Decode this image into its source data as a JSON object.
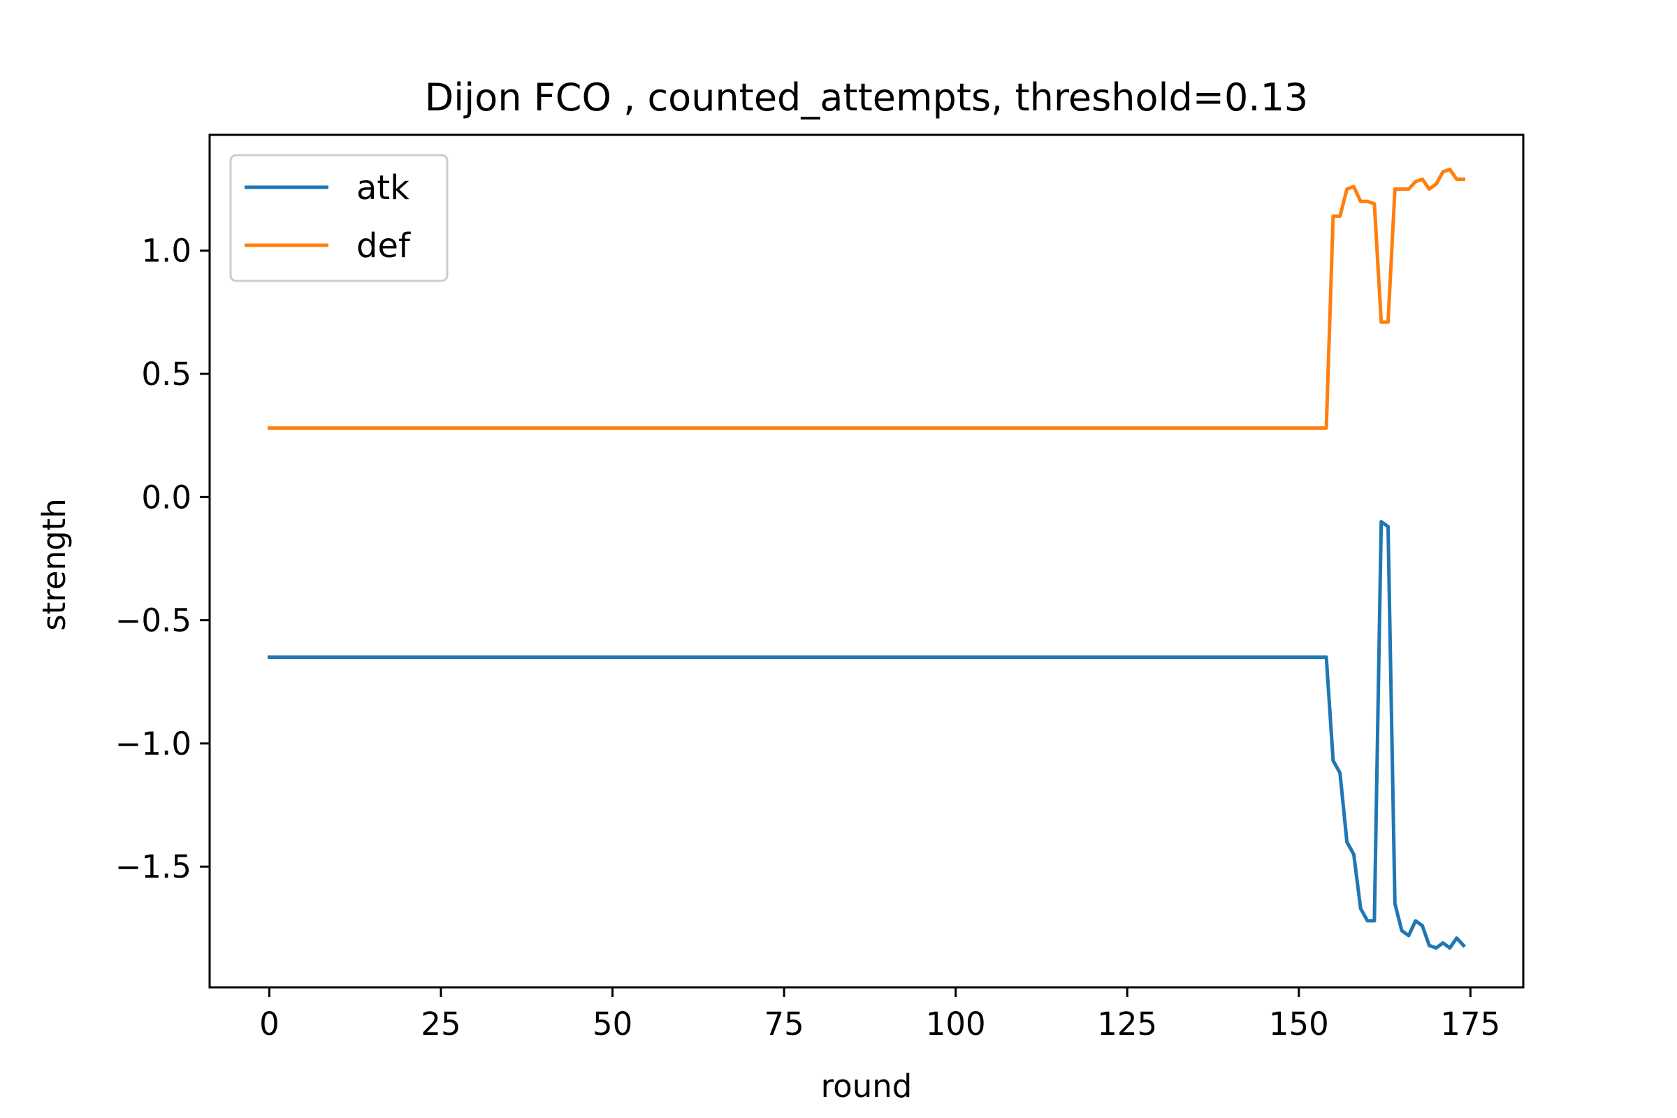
{
  "chart_data": {
    "type": "line",
    "title": "Dijon FCO , counted_attempts, threshold=0.13",
    "xlabel": "round",
    "ylabel": "strength",
    "xlim": [
      -8.7,
      182.7
    ],
    "ylim": [
      -1.99,
      1.47
    ],
    "x_ticks": [
      0,
      25,
      50,
      75,
      100,
      125,
      150,
      175
    ],
    "x_tick_labels": [
      "0",
      "25",
      "50",
      "75",
      "100",
      "125",
      "150",
      "175"
    ],
    "y_ticks": [
      1.0,
      0.5,
      0.0,
      -0.5,
      -1.0,
      -1.5
    ],
    "y_tick_labels": [
      "1.0",
      "0.5",
      "0.0",
      "−0.5",
      "−1.0",
      "−1.5"
    ],
    "grid": false,
    "legend_position": "upper left",
    "series": [
      {
        "name": "atk",
        "color": "#1f77b4",
        "points": [
          [
            0,
            -0.65
          ],
          [
            154,
            -0.65
          ],
          [
            155,
            -1.07
          ],
          [
            156,
            -1.12
          ],
          [
            157,
            -1.4
          ],
          [
            158,
            -1.45
          ],
          [
            159,
            -1.67
          ],
          [
            160,
            -1.72
          ],
          [
            161,
            -1.72
          ],
          [
            162,
            -0.1
          ],
          [
            163,
            -0.12
          ],
          [
            164,
            -1.65
          ],
          [
            165,
            -1.76
          ],
          [
            166,
            -1.78
          ],
          [
            167,
            -1.72
          ],
          [
            168,
            -1.74
          ],
          [
            169,
            -1.82
          ],
          [
            170,
            -1.83
          ],
          [
            171,
            -1.81
          ],
          [
            172,
            -1.83
          ],
          [
            173,
            -1.79
          ],
          [
            174,
            -1.82
          ]
        ]
      },
      {
        "name": "def",
        "color": "#ff7f0e",
        "points": [
          [
            0,
            0.28
          ],
          [
            154,
            0.28
          ],
          [
            155,
            1.14
          ],
          [
            156,
            1.14
          ],
          [
            157,
            1.25
          ],
          [
            158,
            1.26
          ],
          [
            159,
            1.2
          ],
          [
            160,
            1.2
          ],
          [
            161,
            1.19
          ],
          [
            162,
            0.71
          ],
          [
            163,
            0.71
          ],
          [
            164,
            1.25
          ],
          [
            165,
            1.25
          ],
          [
            166,
            1.25
          ],
          [
            167,
            1.28
          ],
          [
            168,
            1.29
          ],
          [
            169,
            1.25
          ],
          [
            170,
            1.27
          ],
          [
            171,
            1.32
          ],
          [
            172,
            1.33
          ],
          [
            173,
            1.29
          ],
          [
            174,
            1.29
          ]
        ]
      }
    ]
  }
}
